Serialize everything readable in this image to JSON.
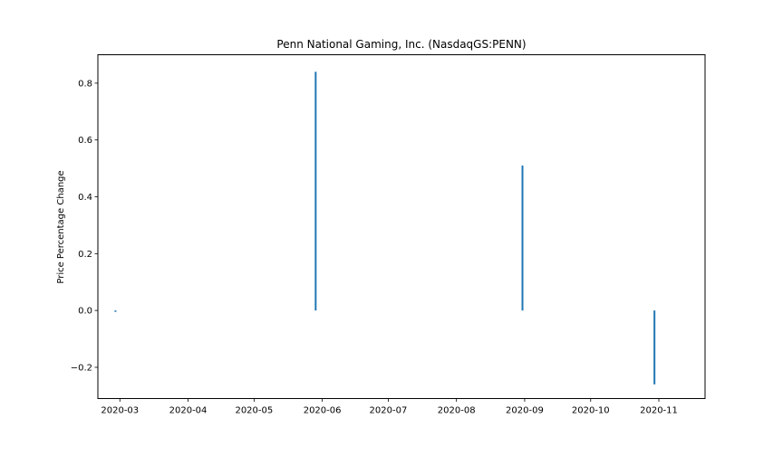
{
  "chart_data": {
    "type": "bar",
    "title": "Penn National Gaming, Inc. (NasdaqGS:PENN)",
    "xlabel": "",
    "ylabel": "Price Percentage Change",
    "x_ticks": [
      "2020-03",
      "2020-04",
      "2020-05",
      "2020-06",
      "2020-07",
      "2020-08",
      "2020-09",
      "2020-10",
      "2020-11"
    ],
    "y_ticks": [
      -0.2,
      0.0,
      0.2,
      0.4,
      0.6,
      0.8
    ],
    "xlim": [
      "2020-02-20",
      "2020-11-22"
    ],
    "ylim": [
      -0.31,
      0.9
    ],
    "grid": false,
    "series": [
      {
        "color": "#1f77b4",
        "points": [
          {
            "date": "2020-02-28",
            "value": -0.005
          },
          {
            "date": "2020-05-29",
            "value": 0.84
          },
          {
            "date": "2020-08-31",
            "value": 0.51
          },
          {
            "date": "2020-10-30",
            "value": -0.26
          }
        ]
      }
    ]
  }
}
